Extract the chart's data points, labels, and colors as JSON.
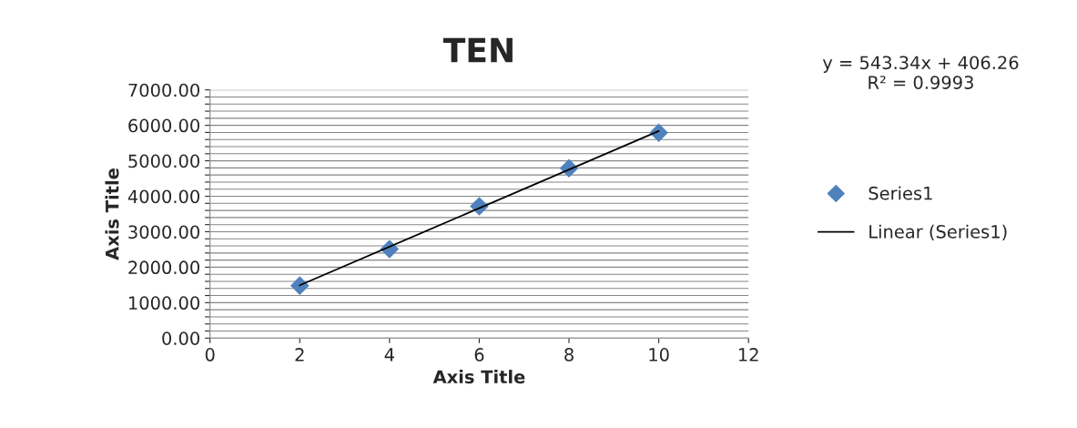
{
  "chart_data": {
    "type": "scatter",
    "title": "TEN",
    "xlabel": "Axis Title",
    "ylabel": "Axis Title",
    "x": [
      2,
      4,
      6,
      8,
      10
    ],
    "series": [
      {
        "name": "Series1",
        "type": "scatter",
        "color": "#4f81bd",
        "marker": "diamond",
        "values": [
          1480,
          2510,
          3720,
          4790,
          5790
        ]
      },
      {
        "name": "Linear (Series1)",
        "type": "line",
        "color": "#000000",
        "marker": "none",
        "line_style": "solid",
        "x": [
          2,
          10
        ],
        "values": [
          1490,
          5840
        ]
      }
    ],
    "annotations": [
      "y = 543.34x + 406.26\nR² = 0.9993"
    ],
    "xlim": [
      0,
      12
    ],
    "xticks": [
      0,
      2,
      4,
      6,
      8,
      10,
      12
    ],
    "ylim": [
      0,
      7000
    ],
    "yticks": [
      {
        "value": 0,
        "label": "0.00"
      },
      {
        "value": 200,
        "label": null
      },
      {
        "value": 400,
        "label": null
      },
      {
        "value": 600,
        "label": null
      },
      {
        "value": 800,
        "label": null
      },
      {
        "value": 1000,
        "label": "1000.00"
      },
      {
        "value": 1200,
        "label": null
      },
      {
        "value": 1400,
        "label": null
      },
      {
        "value": 1600,
        "label": null
      },
      {
        "value": 1800,
        "label": null
      },
      {
        "value": 2000,
        "label": "2000.00"
      },
      {
        "value": 2200,
        "label": null
      },
      {
        "value": 2400,
        "label": null
      },
      {
        "value": 2600,
        "label": null
      },
      {
        "value": 2800,
        "label": null
      },
      {
        "value": 3000,
        "label": "3000.00"
      },
      {
        "value": 3200,
        "label": null
      },
      {
        "value": 3400,
        "label": null
      },
      {
        "value": 3600,
        "label": null
      },
      {
        "value": 3800,
        "label": null
      },
      {
        "value": 4000,
        "label": "4000.00"
      },
      {
        "value": 4200,
        "label": null
      },
      {
        "value": 4400,
        "label": null
      },
      {
        "value": 4600,
        "label": null
      },
      {
        "value": 4800,
        "label": null
      },
      {
        "value": 5000,
        "label": "5000.00"
      },
      {
        "value": 5200,
        "label": null
      },
      {
        "value": 5400,
        "label": null
      },
      {
        "value": 5600,
        "label": null
      },
      {
        "value": 5800,
        "label": null
      },
      {
        "value": 6000,
        "label": "6000.00"
      },
      {
        "value": 6200,
        "label": null
      },
      {
        "value": 6400,
        "label": null
      },
      {
        "value": 6600,
        "label": null
      },
      {
        "value": 6800,
        "label": null
      },
      {
        "value": 7000,
        "label": "7000.00"
      }
    ],
    "grid": "y",
    "legend": "right"
  }
}
